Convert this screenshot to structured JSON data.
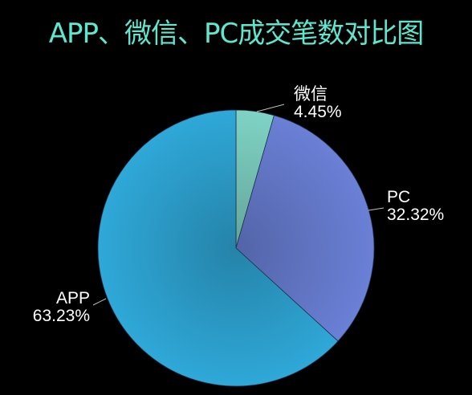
{
  "chart_data": {
    "type": "pie",
    "title": "APP、微信、PC成交笔数对比图",
    "categories": [
      "微信",
      "PC",
      "APP"
    ],
    "values": [
      4.45,
      32.32,
      63.23
    ],
    "value_labels": [
      "4.45%",
      "32.32%",
      "63.23%"
    ],
    "colors": [
      "#7fd3c4",
      "#6a80d6",
      "#2fa8d8"
    ],
    "start_angle_deg": 0,
    "direction": "clockwise",
    "legend": "none",
    "data_labels": "outside with leader lines"
  },
  "colors": {
    "background": "#000000",
    "title": "#5ee6cf",
    "label_text": "#ffffff",
    "leader_line": "#bfbfbf"
  }
}
